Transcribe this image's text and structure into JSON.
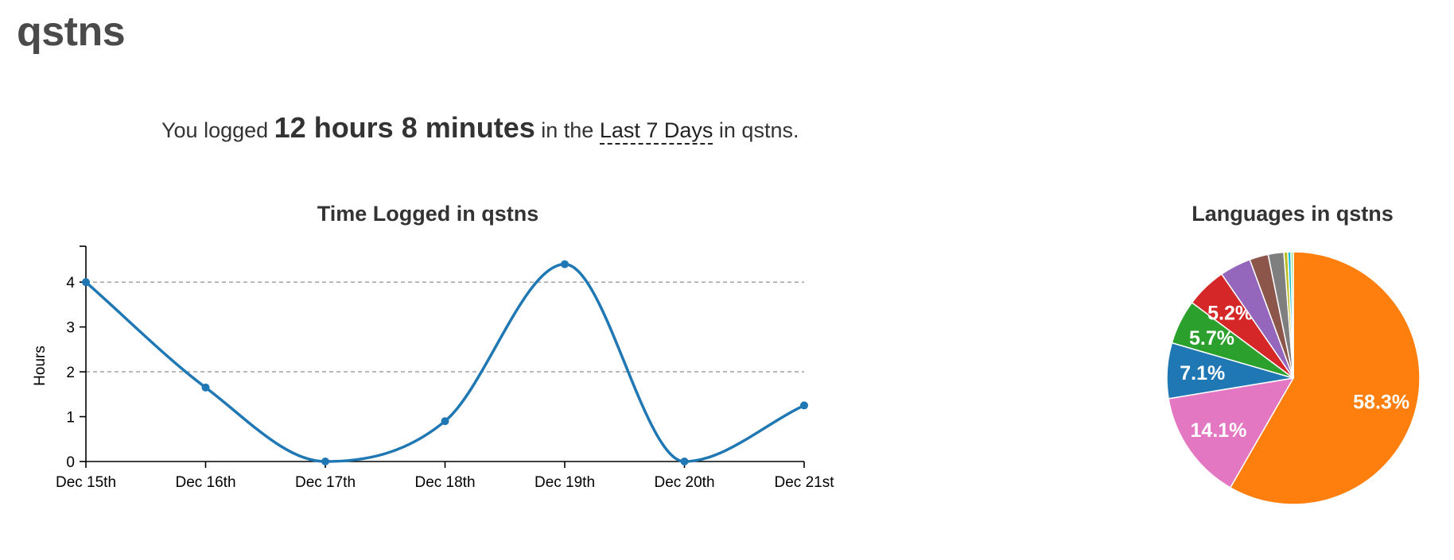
{
  "project": {
    "title": "qstns"
  },
  "summary": {
    "prefix": "You logged ",
    "total": "12 hours 8 minutes",
    "middle": " in the ",
    "range": "Last 7 Days",
    "suffix": " in qstns."
  },
  "chart_data": [
    {
      "type": "line",
      "title": "Time Logged in qstns",
      "ylabel": "Hours",
      "xlabel": "",
      "categories": [
        "Dec 15th",
        "Dec 16th",
        "Dec 17th",
        "Dec 18th",
        "Dec 19th",
        "Dec 20th",
        "Dec 21st"
      ],
      "series": [
        {
          "values": [
            4.0,
            1.65,
            0.0,
            0.9,
            4.4,
            0.0,
            1.25
          ],
          "color": "#1f77b4"
        }
      ],
      "ylim": [
        0,
        4.8
      ],
      "yticks": [
        0,
        1,
        2,
        3,
        4
      ],
      "gridlines_at": [
        2,
        4
      ],
      "grid": true,
      "smooth": true
    },
    {
      "type": "pie",
      "title": "Languages in qstns",
      "slices": [
        {
          "value": 58.3,
          "label": "58.3%",
          "color": "#ff7f0e"
        },
        {
          "value": 14.1,
          "label": "14.1%",
          "color": "#e377c2"
        },
        {
          "value": 7.1,
          "label": "7.1%",
          "color": "#1f77b4"
        },
        {
          "value": 5.7,
          "label": "5.7%",
          "color": "#2ca02c"
        },
        {
          "value": 5.2,
          "label": "5.2%",
          "color": "#d62728"
        },
        {
          "value": 4.0,
          "label": "",
          "color": "#9467bd"
        },
        {
          "value": 2.4,
          "label": "",
          "color": "#8c564b"
        },
        {
          "value": 2.0,
          "label": "",
          "color": "#7f7f7f"
        },
        {
          "value": 0.5,
          "label": "",
          "color": "#bcbd22"
        },
        {
          "value": 0.4,
          "label": "",
          "color": "#17becf"
        },
        {
          "value": 0.3,
          "label": "",
          "color": "#98df8a"
        }
      ]
    }
  ]
}
